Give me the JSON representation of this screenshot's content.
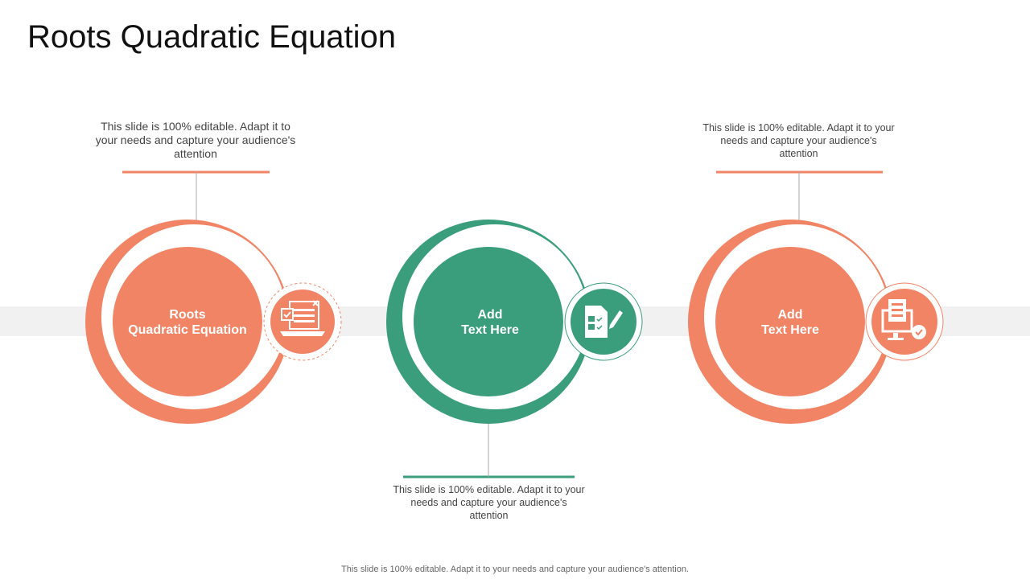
{
  "title": "Roots Quadratic Equation",
  "colors": {
    "coral": "#f28466",
    "green": "#3a9e7c",
    "band": "#f1f1f1"
  },
  "items": [
    {
      "label_line1": "Roots",
      "label_line2": "Quadratic Equation",
      "description": "This slide is 100% editable. Adapt it to your needs and capture your audience's attention",
      "icon": "laptop-checklist-icon",
      "color": "coral"
    },
    {
      "label_line1": "Add",
      "label_line2": "Text Here",
      "description": "This slide is 100% editable. Adapt it to your needs and capture your audience's attention",
      "icon": "test-sheet-pencil-icon",
      "color": "green"
    },
    {
      "label_line1": "Add",
      "label_line2": "Text Here",
      "description": "This slide is 100% editable. Adapt it to your needs and capture your audience's attention",
      "icon": "monitor-clipboard-gear-icon",
      "color": "coral"
    }
  ],
  "footer": "This slide is 100% editable. Adapt it to your needs and capture your audience's attention."
}
